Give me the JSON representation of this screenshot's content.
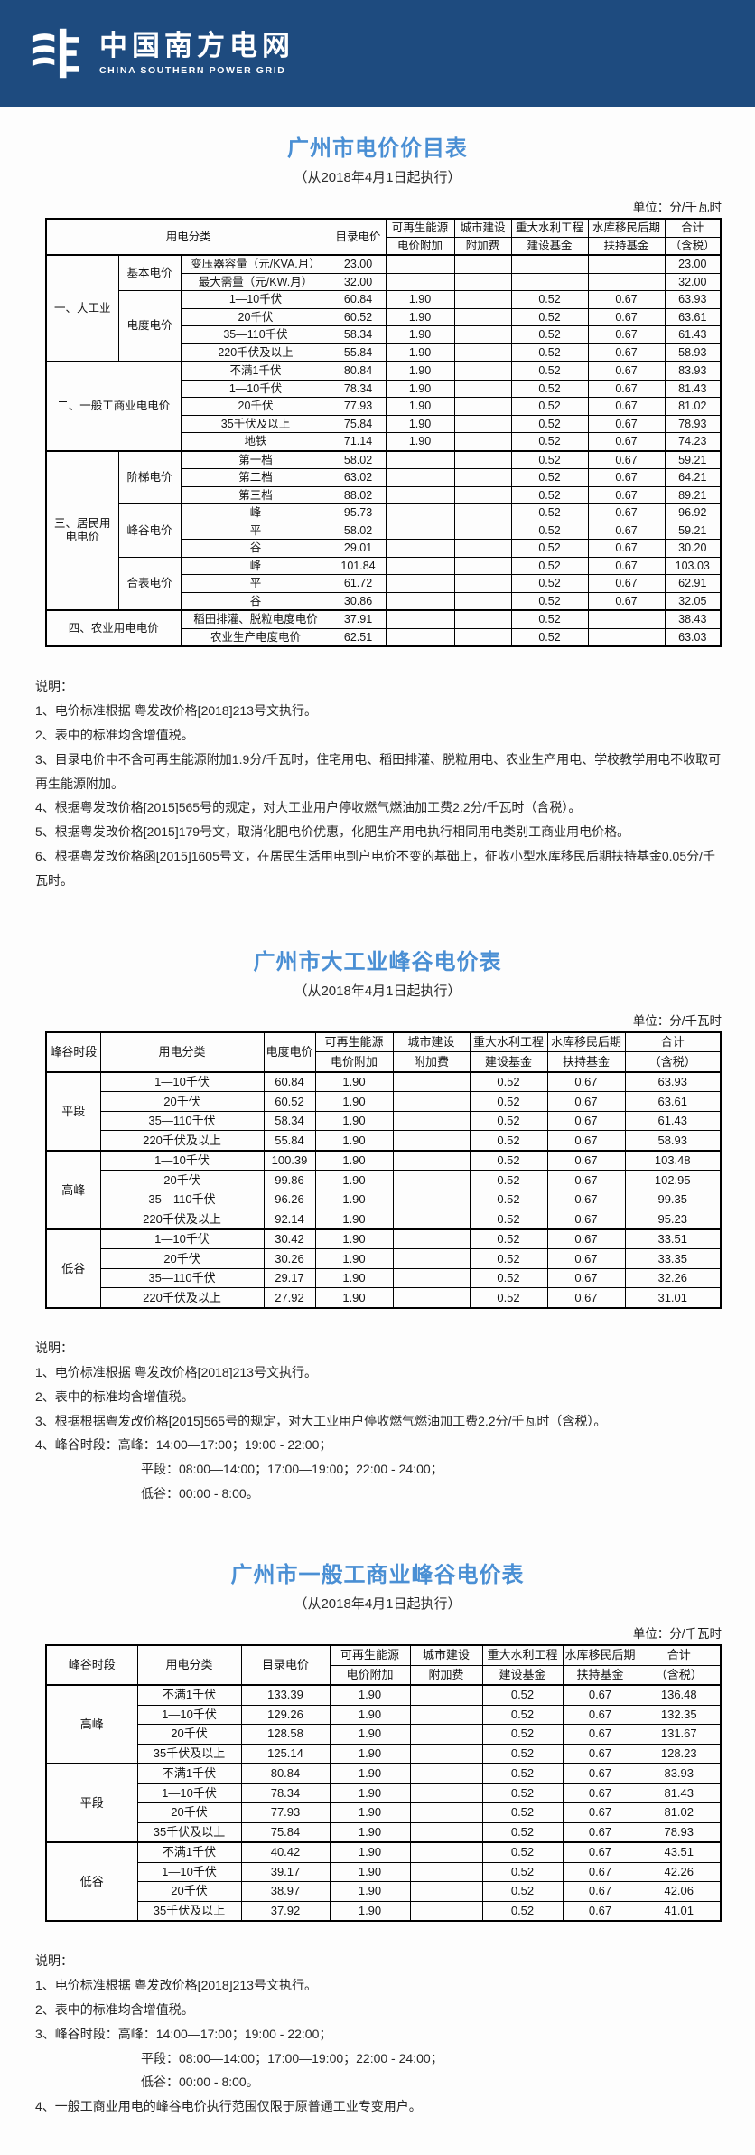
{
  "brand": {
    "name_cn": "中国南方电网",
    "name_en": "CHINA SOUTHERN POWER GRID",
    "banner_color": "#1e4b7f",
    "title_color": "#4a8fd4"
  },
  "unit_label": "单位：分/千瓦时",
  "notes_label": "说明：",
  "table1": {
    "title": "广州市电价价目表",
    "subtitle": "（从2018年4月1日起执行）",
    "header": [
      [
        {
          "t": "用电分类",
          "cs": 3,
          "rs": 2
        },
        {
          "t": "目录电价",
          "rs": 2
        },
        {
          "t": "可再生能源"
        },
        {
          "t": "城市建设"
        },
        {
          "t": "重大水利工程"
        },
        {
          "t": "水库移民后期"
        },
        {
          "t": "合计"
        }
      ],
      [
        {
          "t": "电价附加"
        },
        {
          "t": "附加费"
        },
        {
          "t": "建设基金"
        },
        {
          "t": "扶持基金"
        },
        {
          "t": "（含税）"
        }
      ]
    ],
    "rows": [
      [
        {
          "t": "一、大工业",
          "rs": 6,
          "sec": 1
        },
        {
          "t": "基本电价",
          "rs": 2
        },
        {
          "t": "变压器容量（元/KVA.月）"
        },
        {
          "t": "23.00"
        },
        {
          "t": ""
        },
        {
          "t": ""
        },
        {
          "t": ""
        },
        {
          "t": ""
        },
        {
          "t": "23.00"
        }
      ],
      [
        {
          "t": "最大需量（元/KW.月）"
        },
        {
          "t": "32.00"
        },
        {
          "t": ""
        },
        {
          "t": ""
        },
        {
          "t": ""
        },
        {
          "t": ""
        },
        {
          "t": "32.00"
        }
      ],
      [
        {
          "t": "电度电价",
          "rs": 4
        },
        {
          "t": "1—10千伏"
        },
        {
          "t": "60.84"
        },
        {
          "t": "1.90"
        },
        {
          "t": ""
        },
        {
          "t": "0.52"
        },
        {
          "t": "0.67"
        },
        {
          "t": "63.93"
        }
      ],
      [
        {
          "t": "20千伏"
        },
        {
          "t": "60.52"
        },
        {
          "t": "1.90"
        },
        {
          "t": ""
        },
        {
          "t": "0.52"
        },
        {
          "t": "0.67"
        },
        {
          "t": "63.61"
        }
      ],
      [
        {
          "t": "35—110千伏"
        },
        {
          "t": "58.34"
        },
        {
          "t": "1.90"
        },
        {
          "t": ""
        },
        {
          "t": "0.52"
        },
        {
          "t": "0.67"
        },
        {
          "t": "61.43"
        }
      ],
      [
        {
          "t": "220千伏及以上"
        },
        {
          "t": "55.84"
        },
        {
          "t": "1.90"
        },
        {
          "t": ""
        },
        {
          "t": "0.52"
        },
        {
          "t": "0.67"
        },
        {
          "t": "58.93"
        }
      ],
      [
        {
          "t": "二、一般工商业电电价",
          "cs": 2,
          "rs": 5,
          "sec": 1
        },
        {
          "t": "不满1千伏"
        },
        {
          "t": "80.84"
        },
        {
          "t": "1.90"
        },
        {
          "t": ""
        },
        {
          "t": "0.52"
        },
        {
          "t": "0.67"
        },
        {
          "t": "83.93"
        }
      ],
      [
        {
          "t": "1—10千伏"
        },
        {
          "t": "78.34"
        },
        {
          "t": "1.90"
        },
        {
          "t": ""
        },
        {
          "t": "0.52"
        },
        {
          "t": "0.67"
        },
        {
          "t": "81.43"
        }
      ],
      [
        {
          "t": "20千伏"
        },
        {
          "t": "77.93"
        },
        {
          "t": "1.90"
        },
        {
          "t": ""
        },
        {
          "t": "0.52"
        },
        {
          "t": "0.67"
        },
        {
          "t": "81.02"
        }
      ],
      [
        {
          "t": "35千伏及以上"
        },
        {
          "t": "75.84"
        },
        {
          "t": "1.90"
        },
        {
          "t": ""
        },
        {
          "t": "0.52"
        },
        {
          "t": "0.67"
        },
        {
          "t": "78.93"
        }
      ],
      [
        {
          "t": "地铁"
        },
        {
          "t": "71.14"
        },
        {
          "t": "1.90"
        },
        {
          "t": ""
        },
        {
          "t": "0.52"
        },
        {
          "t": "0.67"
        },
        {
          "t": "74.23"
        }
      ],
      [
        {
          "t": "三、居民用电电价",
          "rs": 9,
          "sec": 1
        },
        {
          "t": "阶梯电价",
          "rs": 3
        },
        {
          "t": "第一档"
        },
        {
          "t": "58.02"
        },
        {
          "t": ""
        },
        {
          "t": ""
        },
        {
          "t": "0.52"
        },
        {
          "t": "0.67"
        },
        {
          "t": "59.21"
        }
      ],
      [
        {
          "t": "第二档"
        },
        {
          "t": "63.02"
        },
        {
          "t": ""
        },
        {
          "t": ""
        },
        {
          "t": "0.52"
        },
        {
          "t": "0.67"
        },
        {
          "t": "64.21"
        }
      ],
      [
        {
          "t": "第三档"
        },
        {
          "t": "88.02"
        },
        {
          "t": ""
        },
        {
          "t": ""
        },
        {
          "t": "0.52"
        },
        {
          "t": "0.67"
        },
        {
          "t": "89.21"
        }
      ],
      [
        {
          "t": "峰谷电价",
          "rs": 3
        },
        {
          "t": "峰"
        },
        {
          "t": "95.73"
        },
        {
          "t": ""
        },
        {
          "t": ""
        },
        {
          "t": "0.52"
        },
        {
          "t": "0.67"
        },
        {
          "t": "96.92"
        }
      ],
      [
        {
          "t": "平"
        },
        {
          "t": "58.02"
        },
        {
          "t": ""
        },
        {
          "t": ""
        },
        {
          "t": "0.52"
        },
        {
          "t": "0.67"
        },
        {
          "t": "59.21"
        }
      ],
      [
        {
          "t": "谷"
        },
        {
          "t": "29.01"
        },
        {
          "t": ""
        },
        {
          "t": ""
        },
        {
          "t": "0.52"
        },
        {
          "t": "0.67"
        },
        {
          "t": "30.20"
        }
      ],
      [
        {
          "t": "合表电价",
          "rs": 3
        },
        {
          "t": "峰"
        },
        {
          "t": "101.84"
        },
        {
          "t": ""
        },
        {
          "t": ""
        },
        {
          "t": "0.52"
        },
        {
          "t": "0.67"
        },
        {
          "t": "103.03"
        }
      ],
      [
        {
          "t": "平"
        },
        {
          "t": "61.72"
        },
        {
          "t": ""
        },
        {
          "t": ""
        },
        {
          "t": "0.52"
        },
        {
          "t": "0.67"
        },
        {
          "t": "62.91"
        }
      ],
      [
        {
          "t": "谷"
        },
        {
          "t": "30.86"
        },
        {
          "t": ""
        },
        {
          "t": ""
        },
        {
          "t": "0.52"
        },
        {
          "t": "0.67"
        },
        {
          "t": "32.05"
        }
      ],
      [
        {
          "t": "四、农业用电电价",
          "cs": 2,
          "rs": 2,
          "sec": 1
        },
        {
          "t": "稻田排灌、脱粒电度电价"
        },
        {
          "t": "37.91"
        },
        {
          "t": ""
        },
        {
          "t": ""
        },
        {
          "t": "0.52"
        },
        {
          "t": ""
        },
        {
          "t": "38.43"
        }
      ],
      [
        {
          "t": "农业生产电度电价"
        },
        {
          "t": "62.51"
        },
        {
          "t": ""
        },
        {
          "t": ""
        },
        {
          "t": "0.52"
        },
        {
          "t": ""
        },
        {
          "t": "63.03"
        }
      ]
    ],
    "notes": [
      "1、电价标准根据 粤发改价格[2018]213号文执行。",
      "2、表中的标准均含增值税。",
      "3、目录电价中不含可再生能源附加1.9分/千瓦时，住宅用电、稻田排灌、脱粒用电、农业生产用电、学校教学用电不收取可再生能源附加。",
      "4、根据粤发改价格[2015]565号的规定，对大工业用户停收燃气燃油加工费2.2分/千瓦时（含税）。",
      "5、根据粤发改价格[2015]179号文，取消化肥电价优惠，化肥生产用电执行相同用电类别工商业用电价格。",
      "6、根据粤发改价格函[2015]1605号文，在居民生活用电到户电价不变的基础上，征收小型水库移民后期扶持基金0.05分/千瓦时。"
    ]
  },
  "table2": {
    "title": "广州市大工业峰谷电价表",
    "subtitle": "（从2018年4月1日起执行）",
    "header": [
      [
        {
          "t": "峰谷时段",
          "rs": 2
        },
        {
          "t": "用电分类",
          "rs": 2
        },
        {
          "t": "电度电价",
          "rs": 2
        },
        {
          "t": "可再生能源"
        },
        {
          "t": "城市建设"
        },
        {
          "t": "重大水利工程"
        },
        {
          "t": "水库移民后期"
        },
        {
          "t": "合计"
        }
      ],
      [
        {
          "t": "电价附加"
        },
        {
          "t": "附加费"
        },
        {
          "t": "建设基金"
        },
        {
          "t": "扶持基金"
        },
        {
          "t": "（含税）"
        }
      ]
    ],
    "rows": [
      [
        {
          "t": "平段",
          "rs": 4,
          "sec": 1
        },
        {
          "t": "1—10千伏"
        },
        {
          "t": "60.84"
        },
        {
          "t": "1.90"
        },
        {
          "t": ""
        },
        {
          "t": "0.52"
        },
        {
          "t": "0.67"
        },
        {
          "t": "63.93"
        }
      ],
      [
        {
          "t": "20千伏"
        },
        {
          "t": "60.52"
        },
        {
          "t": "1.90"
        },
        {
          "t": ""
        },
        {
          "t": "0.52"
        },
        {
          "t": "0.67"
        },
        {
          "t": "63.61"
        }
      ],
      [
        {
          "t": "35—110千伏"
        },
        {
          "t": "58.34"
        },
        {
          "t": "1.90"
        },
        {
          "t": ""
        },
        {
          "t": "0.52"
        },
        {
          "t": "0.67"
        },
        {
          "t": "61.43"
        }
      ],
      [
        {
          "t": "220千伏及以上"
        },
        {
          "t": "55.84"
        },
        {
          "t": "1.90"
        },
        {
          "t": ""
        },
        {
          "t": "0.52"
        },
        {
          "t": "0.67"
        },
        {
          "t": "58.93"
        }
      ],
      [
        {
          "t": "高峰",
          "rs": 4,
          "sec": 1
        },
        {
          "t": "1—10千伏"
        },
        {
          "t": "100.39"
        },
        {
          "t": "1.90"
        },
        {
          "t": ""
        },
        {
          "t": "0.52"
        },
        {
          "t": "0.67"
        },
        {
          "t": "103.48"
        }
      ],
      [
        {
          "t": "20千伏"
        },
        {
          "t": "99.86"
        },
        {
          "t": "1.90"
        },
        {
          "t": ""
        },
        {
          "t": "0.52"
        },
        {
          "t": "0.67"
        },
        {
          "t": "102.95"
        }
      ],
      [
        {
          "t": "35—110千伏"
        },
        {
          "t": "96.26"
        },
        {
          "t": "1.90"
        },
        {
          "t": ""
        },
        {
          "t": "0.52"
        },
        {
          "t": "0.67"
        },
        {
          "t": "99.35"
        }
      ],
      [
        {
          "t": "220千伏及以上"
        },
        {
          "t": "92.14"
        },
        {
          "t": "1.90"
        },
        {
          "t": ""
        },
        {
          "t": "0.52"
        },
        {
          "t": "0.67"
        },
        {
          "t": "95.23"
        }
      ],
      [
        {
          "t": "低谷",
          "rs": 4,
          "sec": 1
        },
        {
          "t": "1—10千伏"
        },
        {
          "t": "30.42"
        },
        {
          "t": "1.90"
        },
        {
          "t": ""
        },
        {
          "t": "0.52"
        },
        {
          "t": "0.67"
        },
        {
          "t": "33.51"
        }
      ],
      [
        {
          "t": "20千伏"
        },
        {
          "t": "30.26"
        },
        {
          "t": "1.90"
        },
        {
          "t": ""
        },
        {
          "t": "0.52"
        },
        {
          "t": "0.67"
        },
        {
          "t": "33.35"
        }
      ],
      [
        {
          "t": "35—110千伏"
        },
        {
          "t": "29.17"
        },
        {
          "t": "1.90"
        },
        {
          "t": ""
        },
        {
          "t": "0.52"
        },
        {
          "t": "0.67"
        },
        {
          "t": "32.26"
        }
      ],
      [
        {
          "t": "220千伏及以上"
        },
        {
          "t": "27.92"
        },
        {
          "t": "1.90"
        },
        {
          "t": ""
        },
        {
          "t": "0.52"
        },
        {
          "t": "0.67"
        },
        {
          "t": "31.01"
        }
      ]
    ],
    "notes": [
      "1、电价标准根据 粤发改价格[2018]213号文执行。",
      "2、表中的标准均含增值税。",
      "3、根据根据粤发改价格[2015]565号的规定，对大工业用户停收燃气燃油加工费2.2分/千瓦时（含税）。",
      "4、峰谷时段：高峰：14:00—17:00；19:00 - 22:00；",
      "平段：08:00—14:00；17:00—19:00；22:00 - 24:00；",
      "低谷：00:00 - 8:00。"
    ]
  },
  "table3": {
    "title": "广州市一般工商业峰谷电价表",
    "subtitle": "（从2018年4月1日起执行）",
    "header": [
      [
        {
          "t": "峰谷时段",
          "rs": 2
        },
        {
          "t": "用电分类",
          "rs": 2
        },
        {
          "t": "目录电价",
          "rs": 2
        },
        {
          "t": "可再生能源"
        },
        {
          "t": "城市建设"
        },
        {
          "t": "重大水利工程"
        },
        {
          "t": "水库移民后期"
        },
        {
          "t": "合计"
        }
      ],
      [
        {
          "t": "电价附加"
        },
        {
          "t": "附加费"
        },
        {
          "t": "建设基金"
        },
        {
          "t": "扶持基金"
        },
        {
          "t": "（含税）"
        }
      ]
    ],
    "rows": [
      [
        {
          "t": "高峰",
          "rs": 4,
          "sec": 1
        },
        {
          "t": "不满1千伏"
        },
        {
          "t": "133.39"
        },
        {
          "t": "1.90"
        },
        {
          "t": ""
        },
        {
          "t": "0.52"
        },
        {
          "t": "0.67"
        },
        {
          "t": "136.48"
        }
      ],
      [
        {
          "t": "1—10千伏"
        },
        {
          "t": "129.26"
        },
        {
          "t": "1.90"
        },
        {
          "t": ""
        },
        {
          "t": "0.52"
        },
        {
          "t": "0.67"
        },
        {
          "t": "132.35"
        }
      ],
      [
        {
          "t": "20千伏"
        },
        {
          "t": "128.58"
        },
        {
          "t": "1.90"
        },
        {
          "t": ""
        },
        {
          "t": "0.52"
        },
        {
          "t": "0.67"
        },
        {
          "t": "131.67"
        }
      ],
      [
        {
          "t": "35千伏及以上"
        },
        {
          "t": "125.14"
        },
        {
          "t": "1.90"
        },
        {
          "t": ""
        },
        {
          "t": "0.52"
        },
        {
          "t": "0.67"
        },
        {
          "t": "128.23"
        }
      ],
      [
        {
          "t": "平段",
          "rs": 4,
          "sec": 1
        },
        {
          "t": "不满1千伏"
        },
        {
          "t": "80.84"
        },
        {
          "t": "1.90"
        },
        {
          "t": ""
        },
        {
          "t": "0.52"
        },
        {
          "t": "0.67"
        },
        {
          "t": "83.93"
        }
      ],
      [
        {
          "t": "1—10千伏"
        },
        {
          "t": "78.34"
        },
        {
          "t": "1.90"
        },
        {
          "t": ""
        },
        {
          "t": "0.52"
        },
        {
          "t": "0.67"
        },
        {
          "t": "81.43"
        }
      ],
      [
        {
          "t": "20千伏"
        },
        {
          "t": "77.93"
        },
        {
          "t": "1.90"
        },
        {
          "t": ""
        },
        {
          "t": "0.52"
        },
        {
          "t": "0.67"
        },
        {
          "t": "81.02"
        }
      ],
      [
        {
          "t": "35千伏及以上"
        },
        {
          "t": "75.84"
        },
        {
          "t": "1.90"
        },
        {
          "t": ""
        },
        {
          "t": "0.52"
        },
        {
          "t": "0.67"
        },
        {
          "t": "78.93"
        }
      ],
      [
        {
          "t": "低谷",
          "rs": 4,
          "sec": 1
        },
        {
          "t": "不满1千伏"
        },
        {
          "t": "40.42"
        },
        {
          "t": "1.90"
        },
        {
          "t": ""
        },
        {
          "t": "0.52"
        },
        {
          "t": "0.67"
        },
        {
          "t": "43.51"
        }
      ],
      [
        {
          "t": "1—10千伏"
        },
        {
          "t": "39.17"
        },
        {
          "t": "1.90"
        },
        {
          "t": ""
        },
        {
          "t": "0.52"
        },
        {
          "t": "0.67"
        },
        {
          "t": "42.26"
        }
      ],
      [
        {
          "t": "20千伏"
        },
        {
          "t": "38.97"
        },
        {
          "t": "1.90"
        },
        {
          "t": ""
        },
        {
          "t": "0.52"
        },
        {
          "t": "0.67"
        },
        {
          "t": "42.06"
        }
      ],
      [
        {
          "t": "35千伏及以上"
        },
        {
          "t": "37.92"
        },
        {
          "t": "1.90"
        },
        {
          "t": ""
        },
        {
          "t": "0.52"
        },
        {
          "t": "0.67"
        },
        {
          "t": "41.01"
        }
      ]
    ],
    "notes": [
      "1、电价标准根据 粤发改价格[2018]213号文执行。",
      "2、表中的标准均含增值税。",
      "3、峰谷时段：高峰：14:00—17:00；19:00 - 22:00；",
      "平段：08:00—14:00；17:00—19:00；22:00 - 24:00；",
      "低谷：00:00 - 8:00。",
      "4、一般工商业用电的峰谷电价执行范围仅限于原普通工业专变用户。"
    ]
  }
}
